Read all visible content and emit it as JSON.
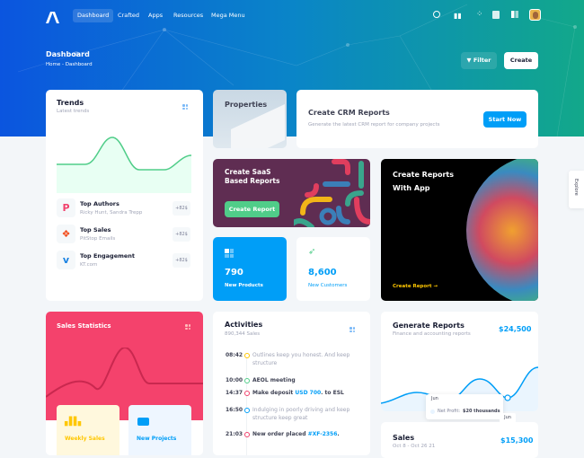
{
  "nav": {
    "items": [
      "Dashboard",
      "Crafted",
      "Apps",
      "Resources",
      "Mega Menu"
    ],
    "active": "Dashboard"
  },
  "toolbar": {
    "title": "Dashboard",
    "breadcrumb": [
      "Home",
      "Dashboard"
    ],
    "filter_label": "Filter",
    "create_label": "Create"
  },
  "trends": {
    "title": "Trends",
    "subtitle": "Latest trends",
    "items": [
      {
        "title": "Top Authors",
        "sub": "Ricky Hunt, Sandra Trepp",
        "badge": "+82$",
        "icon": "p-logo-icon",
        "color": "#f1416c"
      },
      {
        "title": "Top Sales",
        "sub": "PitStop Emails",
        "badge": "+82$",
        "icon": "figma-icon",
        "color": "#f24e1e"
      },
      {
        "title": "Top Engagement",
        "sub": "KT.com",
        "badge": "+82$",
        "icon": "vimeo-icon",
        "color": "#1a82e2"
      }
    ]
  },
  "properties": {
    "title": "Properties"
  },
  "crm": {
    "title": "Create CRM Reports",
    "subtitle": "Generate the latest CRM report for company projects",
    "button": "Start Now"
  },
  "saas": {
    "title_line1": "Create SaaS",
    "title_line2": "Based Reports",
    "button": "Create Report"
  },
  "app": {
    "title_line1": "Create Reports",
    "title_line2": "With App",
    "link": "Create Report"
  },
  "products": {
    "value": "790",
    "label": "New Products"
  },
  "customers": {
    "value": "8,600",
    "label": "New Customers"
  },
  "sales_stats": {
    "title": "Sales Statistics",
    "weekly": "Weekly Sales",
    "projects": "New Projects"
  },
  "activities": {
    "title": "Activities",
    "subtitle": "890,344 Sales",
    "items": [
      {
        "time": "08:42",
        "pre": "Outlines keep you honest. And keep structure",
        "link": "",
        "post": "",
        "color": "#ffc700",
        "muted": true
      },
      {
        "time": "10:00",
        "pre": "AEOL meeting",
        "link": "",
        "post": "",
        "color": "#50cd89",
        "muted": false
      },
      {
        "time": "14:37",
        "pre": "Make deposit ",
        "link": "USD 700",
        "post": ". to ESL",
        "color": "#f1416c",
        "muted": false
      },
      {
        "time": "16:50",
        "pre": "Indulging in poorly driving and keep structure keep great",
        "link": "",
        "post": "",
        "color": "#009ef7",
        "muted": true
      },
      {
        "time": "21:03",
        "pre": "New order placed ",
        "link": "#XF-2356",
        "post": ".",
        "color": "#f1416c",
        "muted": false
      }
    ]
  },
  "generate": {
    "title": "Generate Reports",
    "subtitle": "Finance and accounting reports",
    "amount": "$24,500",
    "tooltip_title": "Jun",
    "tooltip_label": "Net Profit:",
    "tooltip_value": "$20 thousands",
    "x_label": "Jun"
  },
  "sales": {
    "title": "Sales",
    "subtitle": "Oct 8 - Oct 26 21",
    "amount": "$15,300"
  },
  "explore": {
    "label": "Explore"
  },
  "colors": {
    "primary": "#009ef7",
    "success": "#50cd89",
    "danger": "#f1416c",
    "warning": "#ffc700"
  }
}
